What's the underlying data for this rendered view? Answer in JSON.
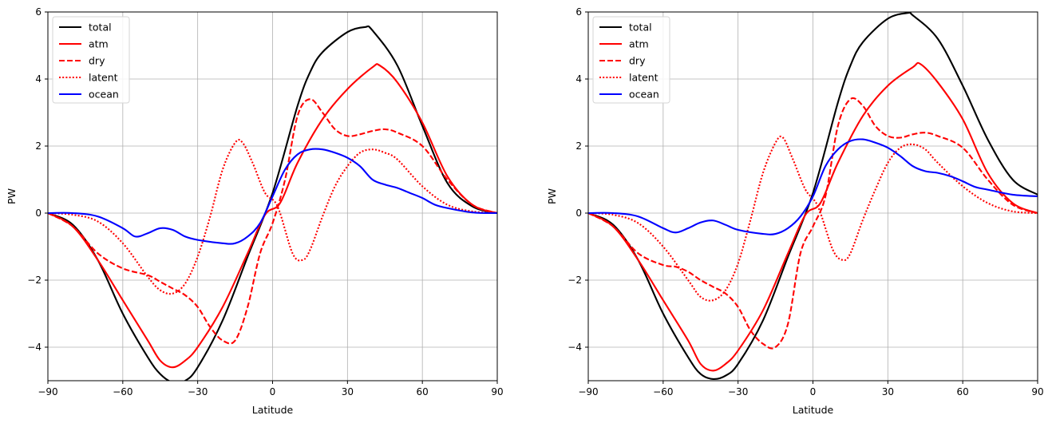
{
  "chart_data": [
    {
      "type": "line",
      "xlabel": "Latitude",
      "ylabel": "PW",
      "xlim": [
        -90,
        90
      ],
      "ylim": [
        -5,
        6
      ],
      "xticks": [
        -90,
        -60,
        -30,
        0,
        30,
        60,
        90
      ],
      "yticks": [
        -4,
        -2,
        0,
        2,
        4,
        6
      ],
      "ytick_labels": [
        "−4",
        "−2",
        "0",
        "2",
        "4",
        "6"
      ],
      "xtick_labels": [
        "−90",
        "−60",
        "−30",
        "0",
        "30",
        "60",
        "90"
      ],
      "grid": true,
      "legend_position": "top-left",
      "series": [
        {
          "name": "total",
          "color": "#000000",
          "dash": "solid",
          "x": [
            -90,
            -80,
            -70,
            -60,
            -50,
            -45,
            -40,
            -35,
            -30,
            -20,
            -10,
            0,
            10,
            15,
            20,
            30,
            37,
            40,
            50,
            60,
            70,
            80,
            90
          ],
          "y": [
            0,
            -0.35,
            -1.4,
            -3.0,
            -4.3,
            -4.8,
            -5.05,
            -5.0,
            -4.6,
            -3.2,
            -1.3,
            0.6,
            3.2,
            4.2,
            4.8,
            5.4,
            5.55,
            5.45,
            4.4,
            2.6,
            0.9,
            0.2,
            0.0
          ]
        },
        {
          "name": "atm",
          "color": "#ff0000",
          "dash": "solid",
          "x": [
            -90,
            -80,
            -70,
            -60,
            -50,
            -45,
            -40,
            -35,
            -30,
            -20,
            -10,
            -3,
            3,
            10,
            20,
            30,
            40,
            43,
            50,
            60,
            70,
            80,
            90
          ],
          "y": [
            0,
            -0.4,
            -1.4,
            -2.6,
            -3.8,
            -4.4,
            -4.6,
            -4.4,
            -4.0,
            -2.8,
            -1.2,
            -0.05,
            0.3,
            1.5,
            2.8,
            3.7,
            4.35,
            4.4,
            3.9,
            2.7,
            1.1,
            0.25,
            0.0
          ]
        },
        {
          "name": "dry",
          "color": "#ff0000",
          "dash": "dashed",
          "x": [
            -90,
            -80,
            -70,
            -60,
            -50,
            -45,
            -40,
            -35,
            -30,
            -25,
            -20,
            -15,
            -10,
            -5,
            0,
            5,
            10,
            15,
            20,
            25,
            30,
            35,
            40,
            45,
            50,
            60,
            70,
            80,
            90
          ],
          "y": [
            0,
            -0.4,
            -1.2,
            -1.65,
            -1.85,
            -2.05,
            -2.25,
            -2.45,
            -2.8,
            -3.4,
            -3.8,
            -3.8,
            -2.8,
            -1.2,
            -0.3,
            1.0,
            2.9,
            3.4,
            3.0,
            2.5,
            2.3,
            2.35,
            2.45,
            2.5,
            2.4,
            2.0,
            1.0,
            0.25,
            0.0
          ]
        },
        {
          "name": "latent",
          "color": "#ff0000",
          "dash": "dotted",
          "x": [
            -90,
            -80,
            -70,
            -60,
            -50,
            -45,
            -40,
            -35,
            -30,
            -25,
            -20,
            -15,
            -12,
            -8,
            -3,
            2,
            8,
            12,
            15,
            20,
            25,
            30,
            35,
            40,
            45,
            50,
            60,
            70,
            80,
            90
          ],
          "y": [
            0,
            -0.05,
            -0.25,
            -0.9,
            -1.9,
            -2.3,
            -2.4,
            -2.1,
            -1.3,
            -0.1,
            1.3,
            2.1,
            2.1,
            1.5,
            0.6,
            0.2,
            -1.2,
            -1.4,
            -1.1,
            -0.1,
            0.8,
            1.4,
            1.8,
            1.9,
            1.8,
            1.6,
            0.8,
            0.25,
            0.05,
            0.0
          ]
        },
        {
          "name": "ocean",
          "color": "#0000ff",
          "dash": "solid",
          "x": [
            -90,
            -80,
            -70,
            -60,
            -55,
            -50,
            -45,
            -40,
            -35,
            -30,
            -20,
            -15,
            -10,
            -5,
            0,
            5,
            10,
            15,
            20,
            25,
            30,
            35,
            40,
            45,
            50,
            55,
            60,
            65,
            70,
            80,
            90
          ],
          "y": [
            0,
            0,
            -0.1,
            -0.45,
            -0.7,
            -0.6,
            -0.45,
            -0.5,
            -0.7,
            -0.8,
            -0.9,
            -0.9,
            -0.7,
            -0.3,
            0.5,
            1.3,
            1.75,
            1.9,
            1.9,
            1.8,
            1.65,
            1.4,
            1.0,
            0.85,
            0.75,
            0.6,
            0.45,
            0.25,
            0.15,
            0.02,
            0.0
          ]
        }
      ]
    },
    {
      "type": "line",
      "xlabel": "Latitude",
      "ylabel": "PW",
      "xlim": [
        -90,
        90
      ],
      "ylim": [
        -5,
        6
      ],
      "xticks": [
        -90,
        -60,
        -30,
        0,
        30,
        60,
        90
      ],
      "yticks": [
        -4,
        -2,
        0,
        2,
        4,
        6
      ],
      "ytick_labels": [
        "−4",
        "−2",
        "0",
        "2",
        "4",
        "6"
      ],
      "xtick_labels": [
        "−90",
        "−60",
        "−30",
        "0",
        "30",
        "60",
        "90"
      ],
      "grid": true,
      "legend_position": "top-left",
      "series": [
        {
          "name": "total",
          "color": "#000000",
          "dash": "solid",
          "x": [
            -90,
            -80,
            -70,
            -60,
            -50,
            -45,
            -40,
            -35,
            -30,
            -20,
            -10,
            0,
            10,
            15,
            20,
            30,
            38,
            40,
            50,
            60,
            70,
            80,
            90
          ],
          "y": [
            0,
            -0.35,
            -1.4,
            -3.0,
            -4.3,
            -4.8,
            -4.95,
            -4.85,
            -4.5,
            -3.2,
            -1.3,
            0.6,
            3.3,
            4.4,
            5.1,
            5.8,
            5.97,
            5.9,
            5.2,
            3.8,
            2.2,
            1.0,
            0.55
          ]
        },
        {
          "name": "atm",
          "color": "#ff0000",
          "dash": "solid",
          "x": [
            -90,
            -80,
            -70,
            -60,
            -50,
            -45,
            -40,
            -35,
            -30,
            -20,
            -10,
            -3,
            3,
            10,
            20,
            30,
            40,
            43,
            50,
            60,
            70,
            80,
            90
          ],
          "y": [
            0,
            -0.4,
            -1.4,
            -2.6,
            -3.8,
            -4.5,
            -4.7,
            -4.5,
            -4.1,
            -2.9,
            -1.2,
            -0.05,
            0.3,
            1.5,
            2.9,
            3.8,
            4.35,
            4.45,
            3.9,
            2.8,
            1.2,
            0.3,
            0.0
          ]
        },
        {
          "name": "dry",
          "color": "#ff0000",
          "dash": "dashed",
          "x": [
            -90,
            -80,
            -70,
            -60,
            -55,
            -50,
            -45,
            -40,
            -35,
            -30,
            -25,
            -20,
            -15,
            -10,
            -5,
            0,
            5,
            10,
            15,
            20,
            25,
            30,
            35,
            40,
            45,
            50,
            60,
            70,
            80,
            90
          ],
          "y": [
            0,
            -0.4,
            -1.2,
            -1.55,
            -1.6,
            -1.75,
            -2.0,
            -2.2,
            -2.4,
            -2.8,
            -3.5,
            -3.9,
            -4.0,
            -3.3,
            -1.2,
            -0.4,
            0.5,
            2.6,
            3.4,
            3.2,
            2.6,
            2.3,
            2.25,
            2.35,
            2.4,
            2.3,
            1.95,
            1.0,
            0.25,
            0.0
          ]
        },
        {
          "name": "latent",
          "color": "#ff0000",
          "dash": "dotted",
          "x": [
            -90,
            -80,
            -70,
            -60,
            -50,
            -45,
            -40,
            -35,
            -30,
            -25,
            -20,
            -15,
            -12,
            -8,
            -3,
            2,
            8,
            12,
            15,
            20,
            25,
            30,
            35,
            40,
            45,
            50,
            60,
            70,
            80,
            90
          ],
          "y": [
            0,
            -0.05,
            -0.3,
            -1.0,
            -2.0,
            -2.5,
            -2.6,
            -2.3,
            -1.5,
            -0.2,
            1.2,
            2.1,
            2.25,
            1.6,
            0.7,
            0.2,
            -1.1,
            -1.4,
            -1.2,
            -0.2,
            0.7,
            1.5,
            1.95,
            2.05,
            1.9,
            1.5,
            0.8,
            0.3,
            0.05,
            0.0
          ]
        },
        {
          "name": "ocean",
          "color": "#0000ff",
          "dash": "solid",
          "x": [
            -90,
            -80,
            -70,
            -60,
            -55,
            -50,
            -45,
            -40,
            -35,
            -30,
            -20,
            -15,
            -10,
            -5,
            0,
            5,
            10,
            15,
            20,
            25,
            30,
            35,
            40,
            45,
            50,
            55,
            60,
            65,
            70,
            80,
            90
          ],
          "y": [
            0,
            0,
            -0.1,
            -0.45,
            -0.58,
            -0.45,
            -0.28,
            -0.22,
            -0.35,
            -0.5,
            -0.62,
            -0.62,
            -0.45,
            -0.1,
            0.5,
            1.4,
            1.9,
            2.15,
            2.2,
            2.1,
            1.95,
            1.7,
            1.4,
            1.25,
            1.2,
            1.1,
            0.95,
            0.78,
            0.7,
            0.55,
            0.5
          ]
        }
      ]
    }
  ]
}
